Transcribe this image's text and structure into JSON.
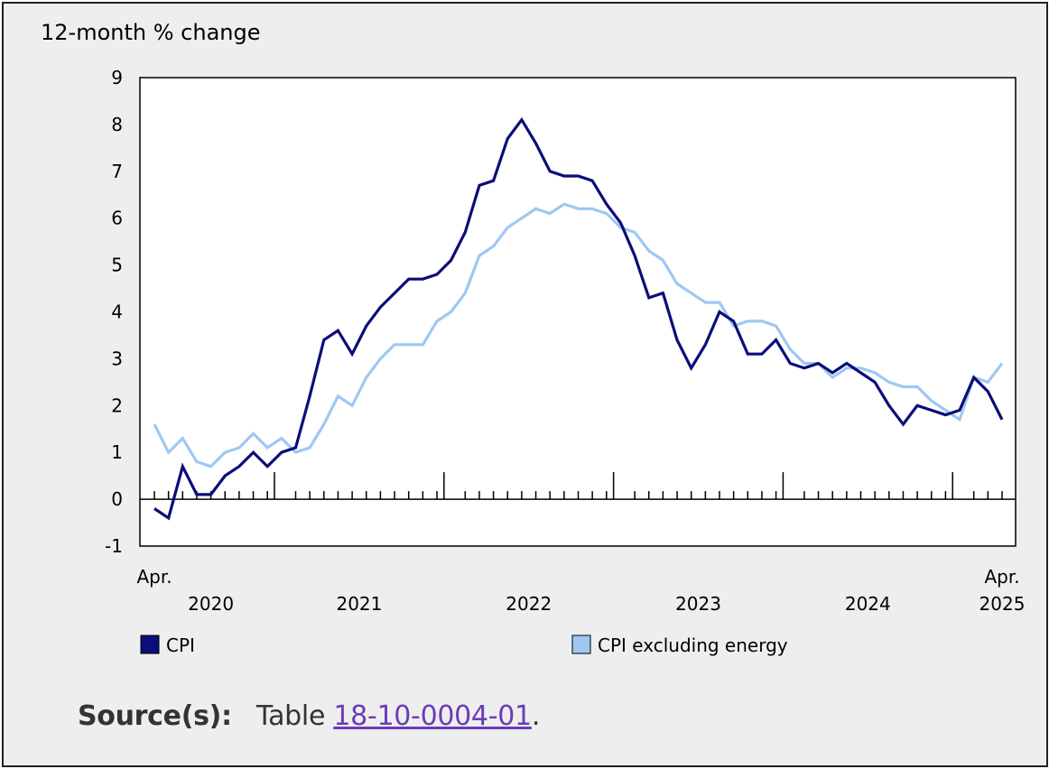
{
  "source": {
    "label": "Source(s):",
    "prefix": "Table",
    "link_text": "18-10-0004-01",
    "suffix": "."
  },
  "chart_data": {
    "type": "line",
    "ylabel": "12-month % change",
    "ylim": [
      -1,
      9
    ],
    "yticks": [
      -1,
      0,
      1,
      2,
      3,
      4,
      5,
      6,
      7,
      8,
      9
    ],
    "x_start": "2020-04",
    "x_end": "2025-04",
    "year_labels": [
      "2020",
      "2021",
      "2022",
      "2023",
      "2024",
      "2025"
    ],
    "start_month_label": "Apr.",
    "end_month_label": "Apr.",
    "grid": false,
    "legend_position": "bottom",
    "series": [
      {
        "name": "CPI",
        "color": "#0b0d7a",
        "values": [
          -0.2,
          -0.4,
          0.7,
          0.1,
          0.1,
          0.5,
          0.7,
          1.0,
          0.7,
          1.0,
          1.1,
          2.2,
          3.4,
          3.6,
          3.1,
          3.7,
          4.1,
          4.4,
          4.7,
          4.7,
          4.8,
          5.1,
          5.7,
          6.7,
          6.8,
          7.7,
          8.1,
          7.6,
          7.0,
          6.9,
          6.9,
          6.8,
          6.3,
          5.9,
          5.2,
          4.3,
          4.4,
          3.4,
          2.8,
          3.3,
          4.0,
          3.8,
          3.1,
          3.1,
          3.4,
          2.9,
          2.8,
          2.9,
          2.7,
          2.9,
          2.7,
          2.5,
          2.0,
          1.6,
          2.0,
          1.9,
          1.8,
          1.9,
          2.6,
          2.3,
          1.7
        ]
      },
      {
        "name": "CPI excluding energy",
        "color": "#9ec8f2",
        "values": [
          1.6,
          1.0,
          1.3,
          0.8,
          0.7,
          1.0,
          1.1,
          1.4,
          1.1,
          1.3,
          1.0,
          1.1,
          1.6,
          2.2,
          2.0,
          2.6,
          3.0,
          3.3,
          3.3,
          3.3,
          3.8,
          4.0,
          4.4,
          5.2,
          5.4,
          5.8,
          6.0,
          6.2,
          6.1,
          6.3,
          6.2,
          6.2,
          6.1,
          5.8,
          5.7,
          5.3,
          5.1,
          4.6,
          4.4,
          4.2,
          4.2,
          3.7,
          3.8,
          3.8,
          3.7,
          3.2,
          2.9,
          2.9,
          2.6,
          2.8,
          2.8,
          2.7,
          2.5,
          2.4,
          2.4,
          2.1,
          1.9,
          1.7,
          2.6,
          2.5,
          2.9
        ]
      }
    ]
  }
}
